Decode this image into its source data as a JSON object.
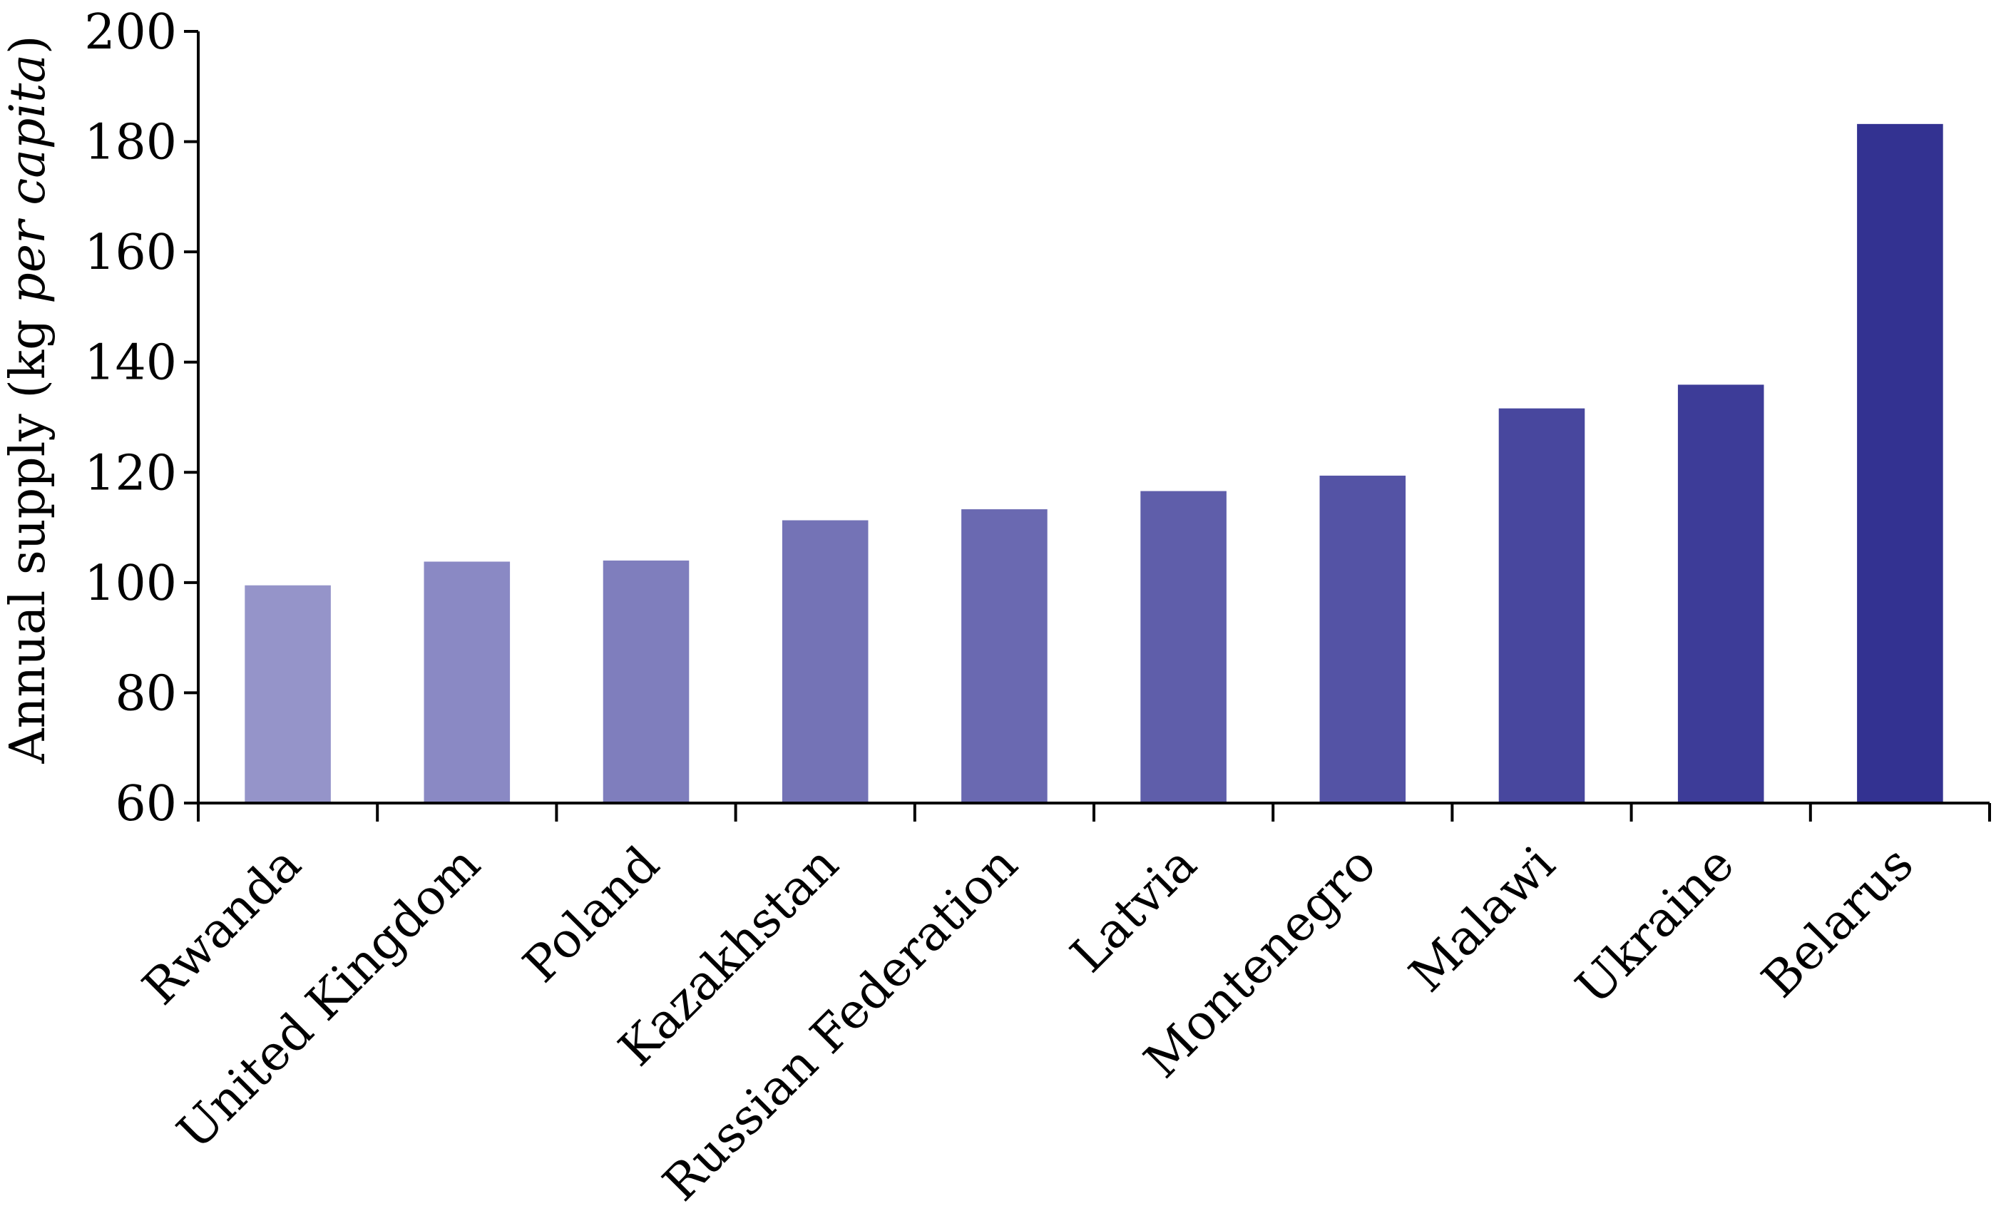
{
  "chart_data": {
    "type": "bar",
    "categories": [
      "Rwanda",
      "United Kingdom",
      "Poland",
      "Kazakhstan",
      "Russian Federation",
      "Latvia",
      "Montenegro",
      "Malawi",
      "Ukraine",
      "Belarus"
    ],
    "values": [
      99.5,
      103.8,
      104,
      111.3,
      113.3,
      116.6,
      119.4,
      131.6,
      135.9,
      183.2
    ],
    "bar_colors": [
      "#9594c9",
      "#8a89c4",
      "#7f7ebd",
      "#7473b6",
      "#6a69b1",
      "#5f5eaa",
      "#5453a5",
      "#48479e",
      "#3d3c98",
      "#333291"
    ],
    "title": "",
    "xlabel": "",
    "ylabel": {
      "prefix": "Annual supply (kg ",
      "italic": "per capita",
      "suffix": ")"
    },
    "ylim": [
      60,
      200
    ],
    "yticks": [
      60,
      80,
      100,
      120,
      140,
      160,
      180,
      200
    ],
    "grid": false,
    "legend": "none"
  }
}
